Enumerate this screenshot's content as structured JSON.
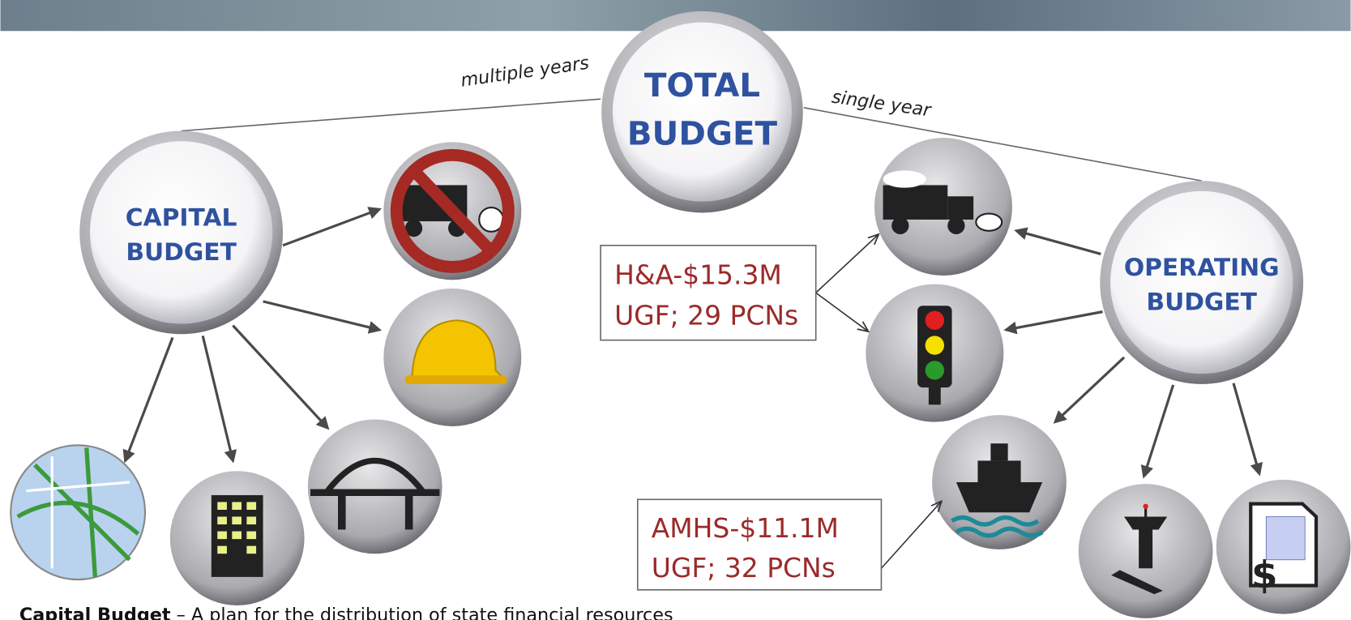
{
  "labels": {
    "multiple_years": "multiple years",
    "single_year": "single year"
  },
  "nodes": [
    {
      "label_lines": [
        "TOTAL",
        "BUDGET"
      ]
    },
    {
      "label_lines": [
        "CAPITAL",
        "BUDGET"
      ]
    },
    {
      "label_lines": [
        "OPERATING",
        "BUDGET"
      ]
    }
  ],
  "callouts": [
    {
      "lines": [
        "H&A-$15.3M",
        "UGF; 29 PCNs"
      ]
    },
    {
      "lines": [
        "AMHS-$11.1M",
        "UGF; 32 PCNs"
      ]
    }
  ],
  "footer": {
    "bold": "Capital Budget",
    "text": " – A plan for the distribution of state financial resources"
  }
}
